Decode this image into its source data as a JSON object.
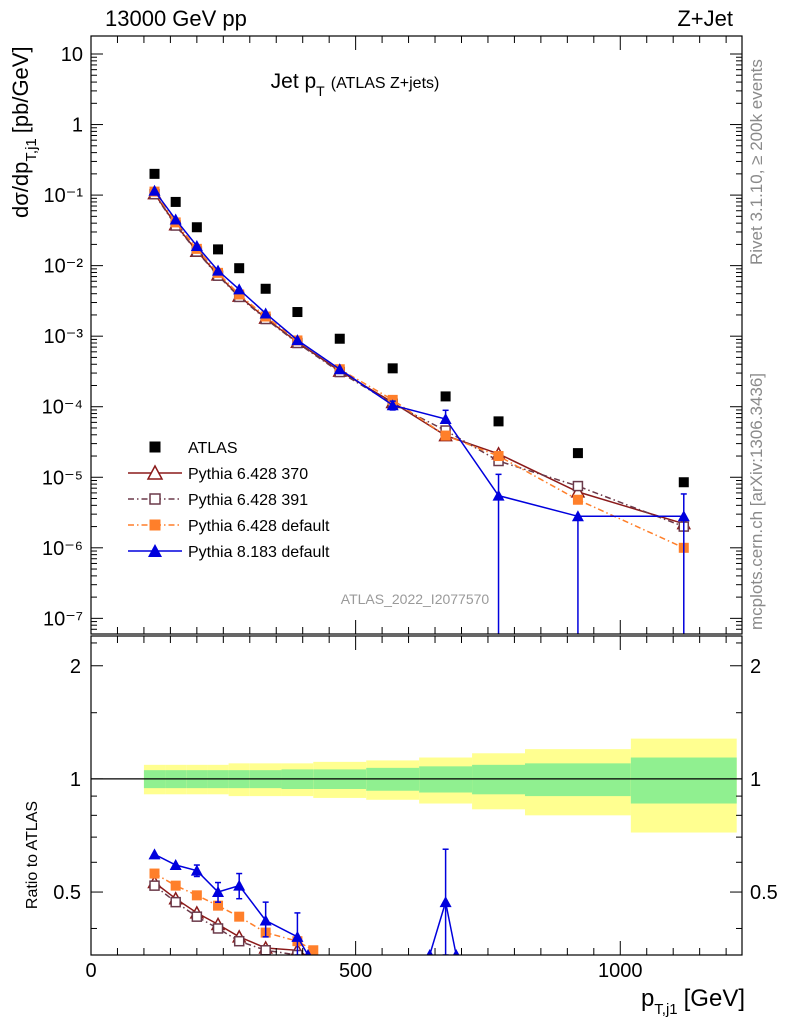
{
  "header": {
    "left": "13000 GeV pp",
    "right": "Z+Jet"
  },
  "side_labels": {
    "rivet": "Rivet 3.1.10, ≥ 200k events",
    "mcplots": "mcplots.cern.ch [arXiv:1306.3436]"
  },
  "watermark": "ATLAS_2022_I2077570",
  "title": {
    "main": "Jet p",
    "sub": "T",
    "extra": "(ATLAS Z+jets)"
  },
  "chart_data": [
    {
      "type": "scatter",
      "panel": "main",
      "yscale": "log",
      "ylim": [
        6e-08,
        18
      ],
      "xlim": [
        0,
        1230
      ],
      "ylabel": {
        "main": "dσ/dp",
        "sub": "T,j1",
        "unit": "[pb/GeV]"
      },
      "ytick_labels": [
        "10",
        "1",
        "10⁻¹",
        "10⁻²",
        "10⁻³",
        "10⁻⁴",
        "10⁻⁵",
        "10⁻⁶",
        "10⁻⁷"
      ],
      "legend_position": "bottom-left",
      "series": [
        {
          "name": "ATLAS",
          "color": "#000000",
          "marker": "square-filled",
          "line": "none",
          "x": [
            120,
            160,
            200,
            240,
            280,
            330,
            390,
            470,
            570,
            670,
            770,
            920,
            1120
          ],
          "y": [
            0.2,
            0.08,
            0.035,
            0.017,
            0.0092,
            0.0047,
            0.0022,
            0.00092,
            0.00035,
            0.00014,
            6.2e-05,
            2.2e-05,
            8.5e-06
          ]
        },
        {
          "name": "Pythia 6.428 370",
          "color": "#8b1a1a",
          "marker": "triangle-open",
          "line": "solid",
          "x": [
            120,
            160,
            200,
            240,
            280,
            330,
            390,
            470,
            570,
            670,
            770,
            920,
            1120
          ],
          "y": [
            0.105,
            0.038,
            0.016,
            0.0074,
            0.0037,
            0.0018,
            0.00082,
            0.00032,
            0.000115,
            3.9e-05,
            2.15e-05,
            6.2e-06,
            2.2e-06
          ]
        },
        {
          "name": "Pythia 6.428 391",
          "color": "#6b3a4a",
          "marker": "square-open",
          "line": "dashdot",
          "x": [
            120,
            160,
            200,
            240,
            280,
            330,
            390,
            470,
            570,
            670,
            770,
            920,
            1120
          ],
          "y": [
            0.103,
            0.037,
            0.0158,
            0.0072,
            0.0036,
            0.00175,
            0.0008,
            0.00031,
            0.00011,
            4.6e-05,
            1.7e-05,
            7.5e-06,
            2e-06
          ]
        },
        {
          "name": "Pythia 6.428 default",
          "color": "#ff7f2a",
          "marker": "square-filled",
          "line": "dashdot",
          "x": [
            120,
            160,
            200,
            240,
            280,
            330,
            390,
            470,
            570,
            670,
            770,
            920,
            1120
          ],
          "y": [
            0.112,
            0.041,
            0.0173,
            0.0079,
            0.0039,
            0.0019,
            0.00087,
            0.00034,
            0.000125,
            3.9e-05,
            2e-05,
            4.8e-06,
            1e-06
          ]
        },
        {
          "name": "Pythia 8.183 default",
          "color": "#0000dd",
          "marker": "triangle-filled",
          "line": "solid",
          "x": [
            120,
            160,
            200,
            240,
            280,
            330,
            390,
            470,
            570,
            670,
            770,
            920,
            1120
          ],
          "y": [
            0.115,
            0.045,
            0.019,
            0.0085,
            0.0046,
            0.0021,
            0.00088,
            0.00034,
            0.000105,
            6.7e-05,
            5.5e-06,
            2.8e-06,
            2.8e-06
          ],
          "y_err_up": [
            0,
            0,
            0,
            0,
            0,
            0,
            0,
            0,
            1.5e-05,
            2.2e-05,
            5.5e-06,
            0,
            3e-06
          ],
          "y_err_down": [
            0,
            0,
            0,
            0,
            0,
            0,
            0,
            0,
            1.5e-05,
            0,
            0,
            0,
            0
          ],
          "y_err_to_bottom": [
            false,
            false,
            false,
            false,
            false,
            false,
            false,
            false,
            false,
            false,
            true,
            true,
            true
          ]
        }
      ]
    },
    {
      "type": "scatter",
      "panel": "ratio",
      "yscale": "log",
      "ylim": [
        0.34,
        2.4
      ],
      "xlim": [
        0,
        1230
      ],
      "xlabel": {
        "main": "p",
        "sub": "T,j1",
        "unit": "[GeV]"
      },
      "ylabel": "Ratio to ATLAS",
      "xtick_labels": [
        "0",
        "500",
        "1000"
      ],
      "ytick_labels": [
        "0.5",
        "1",
        "2"
      ],
      "reference_line": 1,
      "uncertainty_bands": {
        "edges": [
          100,
          140,
          180,
          220,
          260,
          300,
          360,
          420,
          520,
          620,
          720,
          820,
          1020,
          1220
        ],
        "inner": [
          0.055,
          0.055,
          0.055,
          0.055,
          0.055,
          0.055,
          0.06,
          0.06,
          0.07,
          0.08,
          0.09,
          0.1,
          0.14
        ],
        "outer": [
          0.09,
          0.09,
          0.09,
          0.09,
          0.1,
          0.1,
          0.1,
          0.11,
          0.12,
          0.14,
          0.17,
          0.2,
          0.28
        ],
        "inner_color": "#90f090",
        "outer_color": "#ffff90"
      },
      "series": [
        {
          "name": "Pythia 6.428 370",
          "color": "#8b1a1a",
          "marker": "triangle-open",
          "line": "solid",
          "x": [
            120,
            160,
            200,
            240,
            280,
            330,
            390,
            420
          ],
          "y": [
            0.53,
            0.48,
            0.44,
            0.41,
            0.38,
            0.355,
            0.35,
            0.33
          ]
        },
        {
          "name": "Pythia 6.428 391",
          "color": "#6b3a4a",
          "marker": "square-open",
          "line": "dashdot",
          "x": [
            120,
            160,
            200,
            240,
            280,
            330,
            390,
            420
          ],
          "y": [
            0.52,
            0.47,
            0.43,
            0.4,
            0.37,
            0.35,
            0.34,
            0.32
          ]
        },
        {
          "name": "Pythia 6.428 default",
          "color": "#ff7f2a",
          "marker": "square-filled",
          "line": "dashdot",
          "x": [
            120,
            160,
            200,
            240,
            280,
            330,
            390,
            420
          ],
          "y": [
            0.56,
            0.52,
            0.49,
            0.46,
            0.43,
            0.39,
            0.37,
            0.35
          ]
        },
        {
          "name": "Pythia 8.183 default",
          "color": "#0000dd",
          "marker": "triangle-filled",
          "line": "solid",
          "x": [
            120,
            160,
            200,
            240,
            280,
            330,
            390,
            410
          ],
          "y": [
            0.63,
            0.59,
            0.57,
            0.5,
            0.52,
            0.42,
            0.38,
            0.34
          ],
          "y_err_up": [
            0,
            0,
            0.02,
            0.03,
            0.04,
            0.05,
            0.06,
            0
          ],
          "y_err_down": [
            0,
            0,
            0.02,
            0.03,
            0.04,
            0.04,
            0.04,
            0
          ]
        },
        {
          "name": "Pythia 8.183 default (spike)",
          "color": "#0000dd",
          "marker": "triangle-filled",
          "line": "solid",
          "x": [
            640,
            670,
            690
          ],
          "y": [
            0.34,
            0.47,
            0.34
          ],
          "y_err_up": [
            0,
            0.18,
            0
          ],
          "y_err_down": [
            0,
            0.13,
            0
          ]
        }
      ]
    }
  ]
}
